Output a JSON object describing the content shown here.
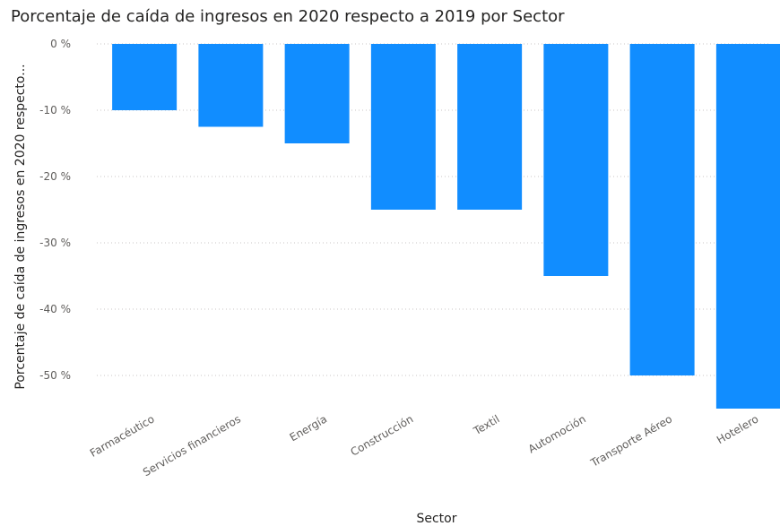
{
  "chart_data": {
    "type": "bar",
    "title": "Porcentaje de caída de ingresos en 2020 respecto a 2019 por Sector",
    "xlabel": "Sector",
    "ylabel": "Porcentaje de caída de ingresos en 2020 respecto...",
    "categories": [
      "Farmacéutico",
      "Servicios financieros",
      "Energía",
      "Construcción",
      "Textil",
      "Automoción",
      "Transporte Aéreo",
      "Hotelero"
    ],
    "values": [
      -10,
      -12.5,
      -15,
      -25,
      -25,
      -35,
      -50,
      -55
    ],
    "ylim": [
      -55,
      0
    ],
    "yticks": [
      0,
      -10,
      -20,
      -30,
      -40,
      -50
    ],
    "ytick_labels": [
      "0 %",
      "-10 %",
      "-20 %",
      "-30 %",
      "-40 %",
      "-50 %"
    ],
    "grid": true,
    "bar_color": "#118dff",
    "grid_color": "#c8c6c4"
  }
}
